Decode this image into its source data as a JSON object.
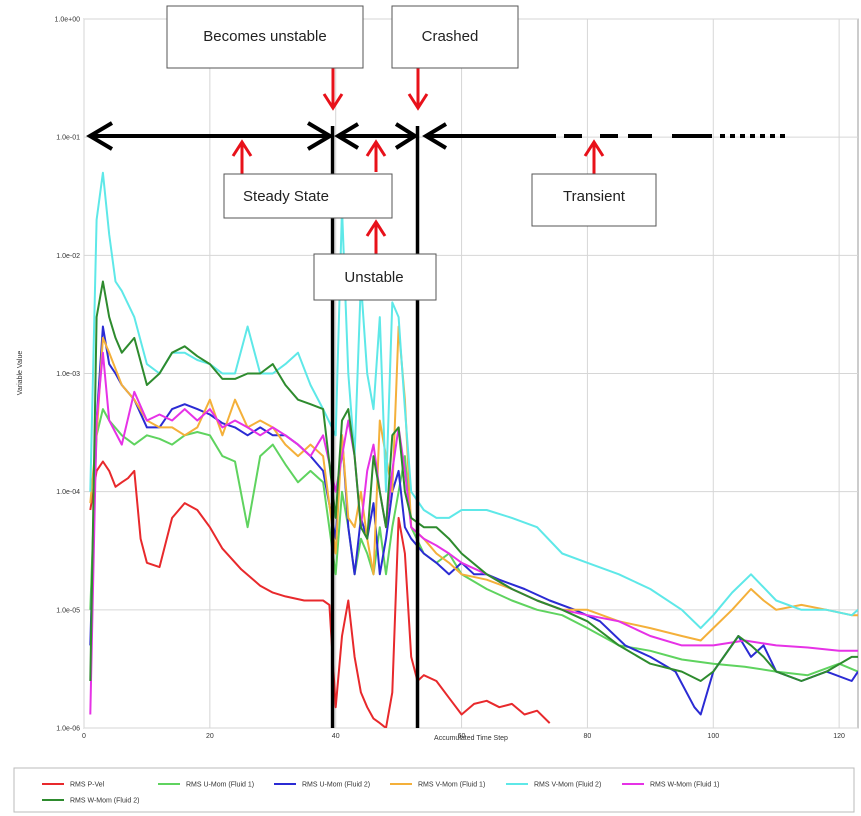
{
  "chart_data": {
    "type": "line",
    "xlabel": "Accumulated Time Step",
    "ylabel": "Variable Value",
    "xlim": [
      0,
      123
    ],
    "ylim": [
      1e-06,
      1
    ],
    "y_scale": "log",
    "grid": true,
    "legend_position": "bottom",
    "x_ticks": [
      0,
      20,
      40,
      60,
      80,
      100,
      120
    ],
    "x_tick_labels": [
      "0",
      "20",
      "40",
      "60",
      "80",
      "100",
      "120"
    ],
    "y_ticks": [
      1e-06,
      1e-05,
      0.0001,
      0.001,
      0.01,
      0.1,
      1
    ],
    "y_tick_labels": [
      "1.0e-06",
      "1.0e-05",
      "1.0e-04",
      "1.0e-03",
      "1.0e-02",
      "1.0e-01",
      "1.0e+00"
    ],
    "series": [
      {
        "name": "RMS P-Vel",
        "color": "#e8292c",
        "x": [
          1,
          2,
          3,
          4,
          5,
          6,
          7,
          8,
          9,
          10,
          12,
          14,
          16,
          18,
          20,
          22,
          25,
          28,
          30,
          32,
          35,
          38,
          39,
          40,
          41,
          42,
          43,
          44,
          45,
          46,
          47,
          48,
          49,
          50,
          51,
          52,
          53,
          54,
          56,
          58,
          60,
          62,
          64,
          66,
          68,
          70,
          72,
          74
        ],
        "y": [
          7e-05,
          0.00015,
          0.00018,
          0.00015,
          0.00011,
          0.00012,
          0.00013,
          0.00015,
          4e-05,
          2.5e-05,
          2.3e-05,
          6e-05,
          8e-05,
          7e-05,
          5e-05,
          3.3e-05,
          2.2e-05,
          1.6e-05,
          1.4e-05,
          1.3e-05,
          1.2e-05,
          1.2e-05,
          1.1e-05,
          1.5e-06,
          6e-06,
          1.2e-05,
          4e-06,
          2e-06,
          1.5e-06,
          1.2e-06,
          1.1e-06,
          1e-06,
          2e-06,
          6e-05,
          3e-05,
          4e-06,
          2.5e-06,
          2.8e-06,
          2.5e-06,
          1.8e-06,
          1.3e-06,
          1.6e-06,
          1.7e-06,
          1.5e-06,
          1.6e-06,
          1.3e-06,
          1.4e-06,
          1.1e-06
        ]
      },
      {
        "name": "RMS U-Mom (Fluid 1)",
        "color": "#5fd35f",
        "x": [
          1,
          2,
          3,
          4,
          6,
          8,
          10,
          12,
          14,
          16,
          18,
          20,
          22,
          24,
          26,
          28,
          30,
          32,
          34,
          36,
          38,
          40,
          41,
          42,
          43,
          44,
          45,
          46,
          47,
          48,
          49,
          50,
          51,
          52,
          54,
          56,
          58,
          60,
          64,
          68,
          72,
          76,
          80,
          85,
          90,
          95,
          100,
          105,
          110,
          115,
          120,
          123
        ],
        "y": [
          1e-05,
          0.0003,
          0.0005,
          0.0004,
          0.0003,
          0.00025,
          0.0003,
          0.00028,
          0.00025,
          0.0003,
          0.00032,
          0.0003,
          0.0002,
          0.00018,
          5e-05,
          0.0002,
          0.00025,
          0.00017,
          0.00012,
          0.00015,
          0.00012,
          2e-05,
          0.0001,
          5e-05,
          2e-05,
          4e-05,
          3e-05,
          2e-05,
          5e-05,
          2e-05,
          5e-05,
          0.0001,
          0.0002,
          5e-05,
          3e-05,
          2.5e-05,
          3e-05,
          2e-05,
          1.5e-05,
          1.2e-05,
          1e-05,
          9e-06,
          7e-06,
          5e-06,
          4.5e-06,
          3.8e-06,
          3.5e-06,
          3.3e-06,
          3e-06,
          2.8e-06,
          3.5e-06,
          3e-06
        ]
      },
      {
        "name": "RMS U-Mom (Fluid 2)",
        "color": "#2b2bd4",
        "x": [
          1,
          2,
          3,
          4,
          5,
          6,
          8,
          10,
          12,
          14,
          16,
          18,
          20,
          22,
          24,
          26,
          28,
          30,
          32,
          34,
          36,
          38,
          40,
          41,
          42,
          43,
          44,
          45,
          46,
          47,
          48,
          49,
          50,
          51,
          52,
          54,
          56,
          58,
          60,
          62,
          64,
          66,
          70,
          74,
          78,
          82,
          86,
          90,
          94,
          97,
          98,
          100,
          104,
          106,
          108,
          110,
          114,
          118,
          122,
          123
        ],
        "y": [
          5e-06,
          0.0004,
          0.0025,
          0.0012,
          0.001,
          0.0008,
          0.0006,
          0.00035,
          0.00035,
          0.0005,
          0.00055,
          0.0005,
          0.00045,
          0.00038,
          0.00035,
          0.0003,
          0.00035,
          0.0003,
          0.0003,
          0.00025,
          0.0002,
          0.00015,
          4e-05,
          0.0003,
          5e-05,
          2e-05,
          6e-05,
          4e-05,
          8e-05,
          2e-05,
          4e-05,
          0.0001,
          0.00015,
          5e-05,
          4e-05,
          3e-05,
          2.5e-05,
          2e-05,
          2.5e-05,
          2e-05,
          2e-05,
          1.8e-05,
          1.5e-05,
          1.2e-05,
          1e-05,
          8e-06,
          5e-06,
          4e-06,
          3e-06,
          1.5e-06,
          1.3e-06,
          3e-06,
          6e-06,
          4e-06,
          5e-06,
          3e-06,
          2.5e-06,
          3e-06,
          2.5e-06,
          3e-06
        ]
      },
      {
        "name": "RMS V-Mom (Fluid 1)",
        "color": "#f4b03a",
        "x": [
          1,
          2,
          3,
          4,
          6,
          8,
          10,
          12,
          14,
          16,
          18,
          20,
          22,
          24,
          26,
          28,
          30,
          32,
          34,
          36,
          38,
          40,
          41,
          42,
          43,
          44,
          45,
          46,
          47,
          48,
          49,
          50,
          51,
          52,
          54,
          56,
          58,
          60,
          64,
          68,
          72,
          76,
          80,
          85,
          90,
          95,
          98,
          100,
          103,
          106,
          108,
          110,
          114,
          118,
          122,
          123
        ],
        "y": [
          8e-05,
          0.0003,
          0.002,
          0.0015,
          0.0008,
          0.0006,
          0.0004,
          0.00035,
          0.00035,
          0.0003,
          0.00035,
          0.0006,
          0.0003,
          0.0006,
          0.00035,
          0.0004,
          0.00035,
          0.00025,
          0.0002,
          0.00025,
          0.0002,
          3e-05,
          0.0003,
          6e-05,
          5e-05,
          0.0001,
          4e-05,
          2e-05,
          0.0004,
          0.0002,
          0.0001,
          0.0025,
          0.0006,
          5e-05,
          4e-05,
          3e-05,
          2.5e-05,
          2e-05,
          1.8e-05,
          1.5e-05,
          1.2e-05,
          1e-05,
          1e-05,
          8e-06,
          7e-06,
          6e-06,
          5.5e-06,
          7e-06,
          1e-05,
          1.5e-05,
          1.2e-05,
          1e-05,
          1.1e-05,
          1e-05,
          9e-06,
          9e-06
        ]
      },
      {
        "name": "RMS V-Mom (Fluid 2)",
        "color": "#5ee8e8",
        "x": [
          1,
          2,
          3,
          4,
          5,
          6,
          8,
          10,
          12,
          14,
          16,
          18,
          20,
          22,
          24,
          26,
          28,
          30,
          32,
          34,
          36,
          38,
          40,
          41,
          42,
          43,
          44,
          45,
          46,
          47,
          48,
          49,
          50,
          51,
          52,
          54,
          56,
          58,
          60,
          64,
          68,
          72,
          76,
          80,
          85,
          90,
          95,
          98,
          100,
          103,
          106,
          110,
          114,
          118,
          122,
          123
        ],
        "y": [
          0.0001,
          0.02,
          0.05,
          0.015,
          0.006,
          0.005,
          0.003,
          0.0012,
          0.001,
          0.0015,
          0.0015,
          0.0013,
          0.0012,
          0.001,
          0.001,
          0.0025,
          0.001,
          0.001,
          0.0012,
          0.0015,
          0.0008,
          0.0005,
          0.0003,
          0.025,
          0.001,
          0.0002,
          0.006,
          0.001,
          0.0005,
          0.003,
          0.0001,
          0.004,
          0.003,
          0.0005,
          0.0001,
          7e-05,
          6e-05,
          6e-05,
          7e-05,
          7e-05,
          6e-05,
          5e-05,
          3e-05,
          2.5e-05,
          2e-05,
          1.5e-05,
          1e-05,
          7e-06,
          9e-06,
          1.4e-05,
          2e-05,
          1.2e-05,
          1e-05,
          1e-05,
          9e-06,
          1e-05
        ]
      },
      {
        "name": "RMS W-Mom (Fluid 1)",
        "color": "#e632e6",
        "x": [
          1,
          2,
          3,
          4,
          6,
          8,
          10,
          12,
          14,
          16,
          18,
          20,
          22,
          24,
          26,
          28,
          30,
          32,
          34,
          36,
          38,
          40,
          41,
          42,
          43,
          44,
          45,
          46,
          47,
          48,
          49,
          50,
          51,
          52,
          54,
          56,
          58,
          60,
          64,
          68,
          72,
          76,
          80,
          85,
          90,
          95,
          100,
          105,
          110,
          115,
          120,
          123
        ],
        "y": [
          1.3e-06,
          0.0004,
          0.0015,
          0.0004,
          0.00025,
          0.0007,
          0.0004,
          0.00045,
          0.0004,
          0.0005,
          0.0004,
          0.0005,
          0.00035,
          0.0004,
          0.00035,
          0.0003,
          0.00035,
          0.0003,
          0.00025,
          0.0002,
          0.0003,
          0.0001,
          0.0002,
          0.0004,
          0.0002,
          5e-05,
          0.00015,
          0.00025,
          0.0001,
          5e-05,
          0.00015,
          0.00035,
          0.00015,
          5e-05,
          4e-05,
          3.5e-05,
          3e-05,
          2.5e-05,
          2e-05,
          1.5e-05,
          1.2e-05,
          1e-05,
          9e-06,
          8e-06,
          6e-06,
          5e-06,
          5e-06,
          5.5e-06,
          5e-06,
          4.8e-06,
          4.5e-06,
          4.5e-06
        ]
      },
      {
        "name": "RMS W-Mom (Fluid 2)",
        "color": "#2e8b2e",
        "x": [
          1,
          2,
          3,
          4,
          5,
          6,
          8,
          10,
          12,
          14,
          16,
          18,
          20,
          22,
          24,
          26,
          28,
          30,
          32,
          34,
          36,
          38,
          40,
          41,
          42,
          43,
          44,
          45,
          46,
          47,
          48,
          49,
          50,
          51,
          52,
          54,
          56,
          58,
          60,
          64,
          68,
          72,
          76,
          80,
          85,
          90,
          95,
          98,
          100,
          104,
          106,
          108,
          110,
          114,
          118,
          122,
          123
        ],
        "y": [
          2.5e-06,
          0.003,
          0.006,
          0.003,
          0.002,
          0.0015,
          0.002,
          0.0008,
          0.001,
          0.0015,
          0.0017,
          0.0014,
          0.0012,
          0.0009,
          0.0009,
          0.001,
          0.001,
          0.0012,
          0.0008,
          0.0006,
          0.00055,
          0.0005,
          6e-05,
          0.0004,
          0.0005,
          0.0002,
          5e-05,
          4e-05,
          0.0002,
          0.0001,
          5e-05,
          0.0003,
          0.00035,
          0.0001,
          6e-05,
          5e-05,
          5e-05,
          4e-05,
          3e-05,
          2e-05,
          1.5e-05,
          1.2e-05,
          1e-05,
          8e-06,
          5e-06,
          3.5e-06,
          3e-06,
          2.5e-06,
          3e-06,
          6e-06,
          5e-06,
          4e-06,
          3e-06,
          2.5e-06,
          3e-06,
          4e-06,
          4e-06
        ]
      }
    ],
    "annotations": {
      "becomes_unstable": "Becomes unstable",
      "crashed": "Crashed",
      "steady_state": "Steady State",
      "unstable": "Unstable",
      "transient": "Transient"
    },
    "phase_boundaries_x": [
      39.5,
      53
    ]
  }
}
